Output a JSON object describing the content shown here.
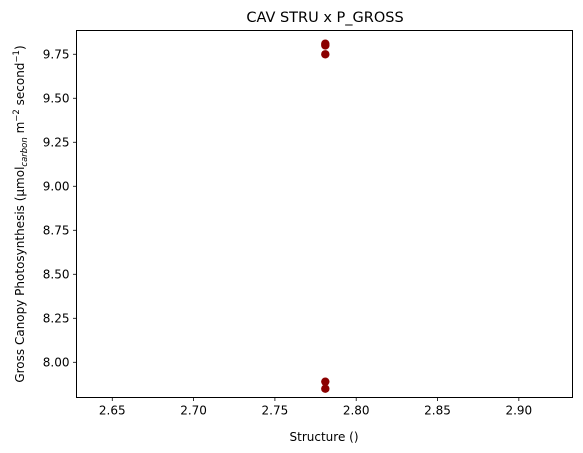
{
  "chart_data": {
    "type": "scatter",
    "title": "CAV STRU x P_GROSS",
    "xlabel": "Structure ()",
    "ylabel_main": "Gross Canopy Photosynthesis (μmol",
    "ylabel_sub": "carbon",
    "ylabel_tail": " m",
    "ylabel_sup1": "−2",
    "ylabel_mid": " second",
    "ylabel_sup2": "−1",
    "ylabel_end": ")",
    "xlim": [
      2.628,
      2.933
    ],
    "ylim": [
      7.8,
      9.885
    ],
    "x_ticks": [
      "2.65",
      "2.70",
      "2.75",
      "2.80",
      "2.85",
      "2.90"
    ],
    "x_tick_values": [
      2.65,
      2.7,
      2.75,
      2.8,
      2.85,
      2.9
    ],
    "y_ticks": [
      "8.00",
      "8.25",
      "8.50",
      "8.75",
      "9.00",
      "9.25",
      "9.50",
      "9.75"
    ],
    "y_tick_values": [
      8.0,
      8.25,
      8.5,
      8.75,
      9.0,
      9.25,
      9.5,
      9.75
    ],
    "grid": false,
    "marker_color": "#8b0000",
    "points": [
      {
        "x": 2.781,
        "y": 9.8
      },
      {
        "x": 2.781,
        "y": 9.81
      },
      {
        "x": 2.781,
        "y": 9.75
      },
      {
        "x": 2.781,
        "y": 7.89
      },
      {
        "x": 2.781,
        "y": 7.85
      }
    ]
  }
}
